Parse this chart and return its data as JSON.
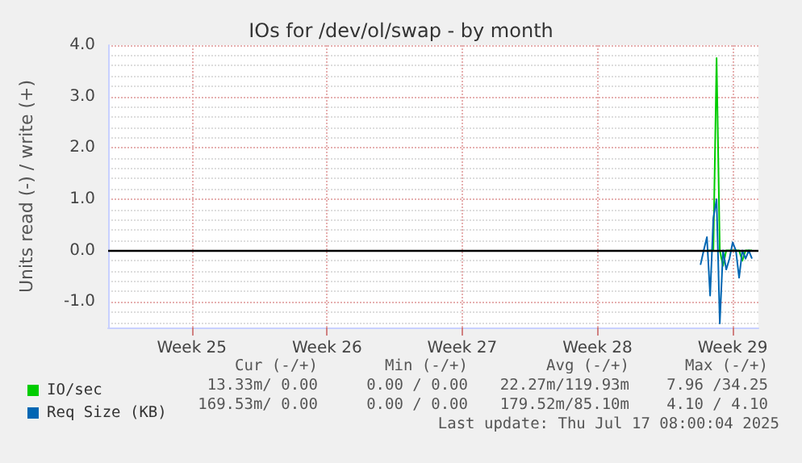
{
  "chart_data": {
    "type": "line",
    "title": "IOs for /dev/ol/swap - by month",
    "ylabel": "Units read (-) / write (+)",
    "categories": [
      null,
      null,
      null,
      null,
      null,
      null,
      null,
      null,
      null,
      null,
      null,
      null,
      null,
      null,
      null,
      null,
      null,
      null,
      null,
      null,
      null,
      null,
      null,
      null,
      null,
      null,
      "Week 25",
      null,
      null,
      null,
      null,
      null,
      null,
      null,
      null,
      null,
      null,
      null,
      null,
      null,
      null,
      null,
      null,
      null,
      null,
      null,
      null,
      null,
      null,
      null,
      null,
      null,
      null,
      null,
      null,
      null,
      null,
      null,
      null,
      null,
      null,
      null,
      null,
      null,
      null,
      null,
      null,
      null,
      "Week 26",
      null,
      null,
      null,
      null,
      null,
      null,
      null,
      null,
      null,
      null,
      null,
      null,
      null,
      null,
      null,
      null,
      null,
      null,
      null,
      null,
      null,
      null,
      null,
      null,
      null,
      null,
      null,
      null,
      null,
      null,
      null,
      null,
      null,
      null,
      null,
      null,
      null,
      null,
      null,
      null,
      null,
      "Week 27",
      null,
      null,
      null,
      null,
      null,
      null,
      null,
      null,
      null,
      null,
      null,
      null,
      null,
      null,
      null,
      null,
      null,
      null,
      null,
      null,
      null,
      null,
      null,
      null,
      null,
      null,
      null,
      null,
      null,
      null,
      null,
      null,
      null,
      null,
      null,
      null,
      null,
      null,
      null,
      null,
      null,
      "Week 28",
      null,
      null,
      null,
      null,
      null,
      null,
      null,
      null,
      null,
      null,
      null,
      null,
      null,
      null,
      null,
      null,
      null,
      null,
      null,
      null,
      null,
      null,
      null,
      null,
      null,
      null,
      null,
      null,
      null,
      null,
      null,
      null,
      null,
      null,
      null,
      null,
      null,
      null,
      null,
      null,
      null,
      "Week 29",
      null,
      null,
      null,
      null,
      null,
      null,
      null,
      null
    ],
    "ylim": [
      -1.5,
      4
    ],
    "yticks": [
      {
        "value": -1,
        "label": "-1.0"
      },
      {
        "value": 0,
        "label": "0.0"
      },
      {
        "value": 1,
        "label": "1.0"
      },
      {
        "value": 2,
        "label": "2.0"
      },
      {
        "value": 3,
        "label": "3.0"
      },
      {
        "value": 4,
        "label": "4.0"
      }
    ],
    "grid": true,
    "legend": "bottom left",
    "marker": "none",
    "line_style": "solid",
    "ref_lines": [
      {
        "axis": "y",
        "value": 0,
        "color": "#000000"
      }
    ],
    "series": [
      {
        "name": "IO/sec",
        "color": "#00cc00",
        "values": [
          null,
          null,
          null,
          null,
          null,
          null,
          null,
          null,
          null,
          null,
          null,
          null,
          null,
          null,
          null,
          null,
          null,
          null,
          null,
          null,
          null,
          null,
          null,
          null,
          null,
          null,
          null,
          null,
          null,
          null,
          null,
          null,
          null,
          null,
          null,
          null,
          null,
          null,
          null,
          null,
          null,
          null,
          null,
          null,
          null,
          null,
          null,
          null,
          null,
          null,
          null,
          null,
          null,
          null,
          null,
          null,
          null,
          null,
          null,
          null,
          null,
          null,
          null,
          null,
          null,
          null,
          null,
          null,
          null,
          null,
          null,
          null,
          null,
          null,
          null,
          null,
          null,
          null,
          null,
          null,
          null,
          null,
          null,
          null,
          null,
          null,
          null,
          null,
          null,
          null,
          null,
          null,
          null,
          null,
          null,
          null,
          null,
          null,
          null,
          null,
          null,
          null,
          null,
          null,
          null,
          null,
          null,
          null,
          null,
          null,
          null,
          null,
          null,
          null,
          null,
          null,
          null,
          null,
          null,
          null,
          null,
          null,
          null,
          null,
          null,
          null,
          null,
          null,
          null,
          null,
          null,
          null,
          null,
          null,
          null,
          null,
          null,
          null,
          null,
          null,
          null,
          null,
          null,
          null,
          null,
          null,
          null,
          null,
          null,
          null,
          null,
          null,
          null,
          null,
          null,
          null,
          null,
          null,
          null,
          null,
          null,
          null,
          null,
          null,
          null,
          null,
          null,
          null,
          null,
          null,
          null,
          null,
          null,
          null,
          null,
          null,
          null,
          null,
          null,
          null,
          null,
          null,
          null,
          null,
          null,
          null,
          0,
          0,
          0,
          3.75,
          0,
          -0.3,
          0,
          0,
          0,
          0,
          0,
          -0.2,
          0,
          0,
          0,
          null,
          null
        ]
      },
      {
        "name": "Req Size (KB)",
        "color": "#0066b3",
        "values": [
          null,
          null,
          null,
          null,
          null,
          null,
          null,
          null,
          null,
          null,
          null,
          null,
          null,
          null,
          null,
          null,
          null,
          null,
          null,
          null,
          null,
          null,
          null,
          null,
          null,
          null,
          null,
          null,
          null,
          null,
          null,
          null,
          null,
          null,
          null,
          null,
          null,
          null,
          null,
          null,
          null,
          null,
          null,
          null,
          null,
          null,
          null,
          null,
          null,
          null,
          null,
          null,
          null,
          null,
          null,
          null,
          null,
          null,
          null,
          null,
          null,
          null,
          null,
          null,
          null,
          null,
          null,
          null,
          null,
          null,
          null,
          null,
          null,
          null,
          null,
          null,
          null,
          null,
          null,
          null,
          null,
          null,
          null,
          null,
          null,
          null,
          null,
          null,
          null,
          null,
          null,
          null,
          null,
          null,
          null,
          null,
          null,
          null,
          null,
          null,
          null,
          null,
          null,
          null,
          null,
          null,
          null,
          null,
          null,
          null,
          null,
          null,
          null,
          null,
          null,
          null,
          null,
          null,
          null,
          null,
          null,
          null,
          null,
          null,
          null,
          null,
          null,
          null,
          null,
          null,
          null,
          null,
          null,
          null,
          null,
          null,
          null,
          null,
          null,
          null,
          null,
          null,
          null,
          null,
          null,
          null,
          null,
          null,
          null,
          null,
          null,
          null,
          null,
          null,
          null,
          null,
          null,
          null,
          null,
          null,
          null,
          null,
          null,
          null,
          null,
          null,
          null,
          null,
          null,
          null,
          null,
          null,
          null,
          null,
          null,
          null,
          null,
          null,
          null,
          null,
          null,
          null,
          null,
          null,
          -0.28,
          0,
          0.26,
          -0.88,
          0.63,
          1.0,
          -1.42,
          0,
          -0.37,
          -0.16,
          0.16,
          0,
          -0.53,
          0,
          -0.16,
          0,
          -0.16,
          null,
          null
        ]
      }
    ],
    "annotations": [
      "Cur (-/+)",
      "Min (-/+)",
      "Avg (-/+)",
      "Max (-/+)",
      "13.33m/ 0.00",
      "0.00 / 0.00",
      "22.27m/119.93m",
      "7.96 /34.25",
      "169.53m/ 0.00",
      "0.00 / 0.00",
      "179.52m/85.10m",
      "4.10 / 4.10",
      "Last update: Thu Jul 17 08:00:04 2025"
    ]
  }
}
